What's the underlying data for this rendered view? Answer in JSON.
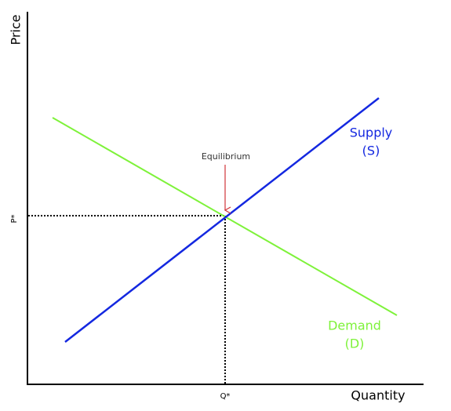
{
  "axes": {
    "y_label": "Price",
    "x_label": "Quantity",
    "p_star": "P*",
    "q_star": "Q*"
  },
  "curves": {
    "supply": {
      "name": "Supply",
      "symbol": "(S)"
    },
    "demand": {
      "name": "Demand",
      "symbol": "(D)"
    }
  },
  "annotation": "Equilibrium"
}
